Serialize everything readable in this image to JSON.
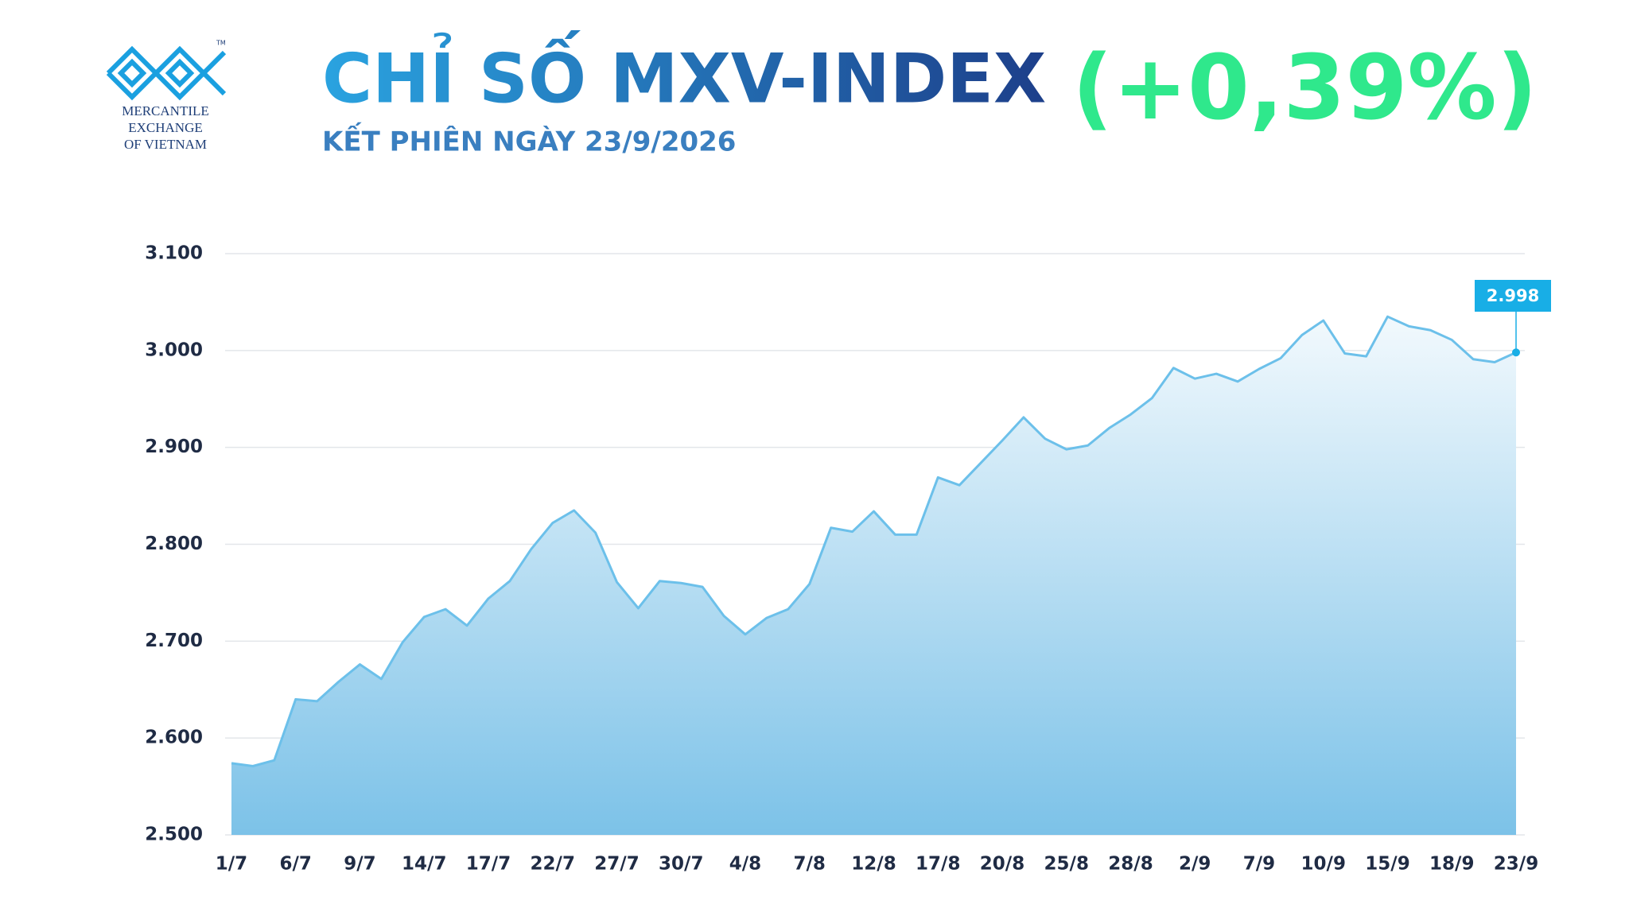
{
  "logo": {
    "lines": [
      "MERCANTILE",
      "EXCHANGE",
      "OF VIETNAM"
    ],
    "trademark": "TM"
  },
  "chart_data": {
    "type": "area",
    "title": "CHỈ SỐ MXV-INDEX",
    "subtitle": "KẾT PHIÊN NGÀY 23/9/2026",
    "change_label": "(+0,39%)",
    "categories": [
      "1/7",
      null,
      null,
      "6/7",
      null,
      null,
      "9/7",
      null,
      null,
      "14/7",
      null,
      null,
      "17/7",
      null,
      null,
      "22/7",
      null,
      null,
      "27/7",
      null,
      null,
      "30/7",
      null,
      null,
      "4/8",
      null,
      null,
      "7/8",
      null,
      null,
      "12/8",
      null,
      null,
      "17/8",
      null,
      null,
      "20/8",
      null,
      null,
      "25/8",
      null,
      null,
      "28/8",
      null,
      null,
      "2/9",
      null,
      null,
      "7/9",
      null,
      null,
      "10/9",
      null,
      null,
      "15/9",
      null,
      null,
      "18/9",
      null,
      null,
      "23/9"
    ],
    "values": [
      2574,
      2571,
      2577,
      2640,
      2638,
      2658,
      2676,
      2661,
      2699,
      2725,
      2733,
      2716,
      2744,
      2762,
      2795,
      2822,
      2835,
      2812,
      2761,
      2734,
      2762,
      2760,
      2756,
      2726,
      2707,
      2724,
      2733,
      2759,
      2817,
      2813,
      2834,
      2810,
      2810,
      2869,
      2861,
      2884,
      2907,
      2931,
      2909,
      2898,
      2902,
      2920,
      2934,
      2951,
      2982,
      2971,
      2976,
      2968,
      2981,
      2992,
      3016,
      3031,
      2997,
      2994,
      3035,
      3025,
      3021,
      3011,
      2991,
      2988,
      2998
    ],
    "value_labels": [
      null,
      null,
      null,
      null,
      null,
      null,
      null,
      null,
      null,
      null,
      null,
      null,
      null,
      null,
      null,
      null,
      null,
      null,
      null,
      null,
      null,
      null,
      null,
      null,
      null,
      null,
      null,
      null,
      null,
      null,
      null,
      null,
      null,
      null,
      null,
      null,
      null,
      null,
      null,
      null,
      null,
      null,
      null,
      null,
      null,
      null,
      null,
      null,
      null,
      null,
      null,
      null,
      null,
      null,
      null,
      null,
      null,
      null,
      null,
      null,
      "2.998"
    ],
    "color": "#6cc0ea",
    "ylim": [
      2500,
      3100
    ],
    "yticks": [
      {
        "value": 2500,
        "label": "2.500"
      },
      {
        "value": 2600,
        "label": "2.600"
      },
      {
        "value": 2700,
        "label": "2.700"
      },
      {
        "value": 2800,
        "label": "2.800"
      },
      {
        "value": 2900,
        "label": "2.900"
      },
      {
        "value": 3000,
        "label": "3.000"
      },
      {
        "value": 3100,
        "label": "3.100"
      }
    ],
    "grid": true
  }
}
